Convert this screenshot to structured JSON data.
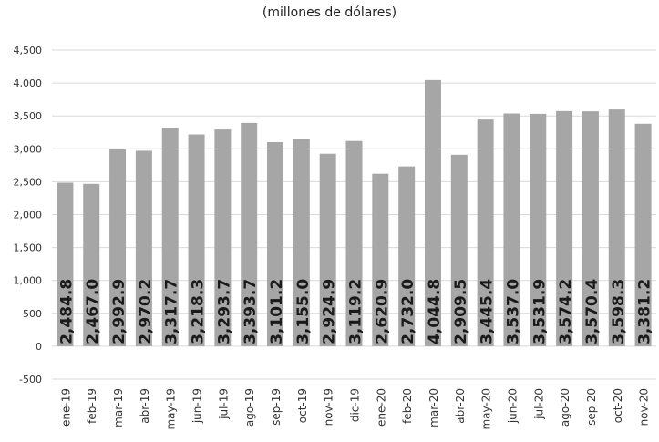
{
  "chart_data": {
    "type": "bar",
    "title": "(millones de dólares)",
    "xlabel": "",
    "ylabel": "",
    "categories": [
      "ene-19",
      "feb-19",
      "mar-19",
      "abr-19",
      "may-19",
      "jun-19",
      "jul-19",
      "ago-19",
      "sep-19",
      "oct-19",
      "nov-19",
      "dic-19",
      "ene-20",
      "feb-20",
      "mar-20",
      "abr-20",
      "may-20",
      "jun-20",
      "jul-20",
      "ago-20",
      "sep-20",
      "oct-20",
      "nov-20"
    ],
    "values": [
      2484.8,
      2467.0,
      2992.9,
      2970.2,
      3317.7,
      3218.3,
      3293.7,
      3393.7,
      3101.2,
      3155.0,
      2924.9,
      3119.2,
      2620.9,
      2732.0,
      4044.8,
      2909.5,
      3445.4,
      3537.0,
      3531.9,
      3574.2,
      3570.4,
      3598.3,
      3381.2
    ],
    "data_labels": [
      "2,484.8",
      "2,467.0",
      "2,992.9",
      "2,970.2",
      "3,317.7",
      "3,218.3",
      "3,293.7",
      "3,393.7",
      "3,101.2",
      "3,155.0",
      "2,924.9",
      "3,119.2",
      "2,620.9",
      "2,732.0",
      "4,044.8",
      "2,909.5",
      "3,445.4",
      "3,537.0",
      "3,531.9",
      "3,574.2",
      "3,570.4",
      "3,598.3",
      "3,381.2"
    ],
    "ylim": [
      -500,
      4500
    ],
    "yticks": [
      -500,
      0,
      500,
      1000,
      1500,
      2000,
      2500,
      3000,
      3500,
      4000,
      4500
    ],
    "ytick_labels": [
      "-500",
      "0",
      "500",
      "1,000",
      "1,500",
      "2,000",
      "2,500",
      "3,000",
      "3,500",
      "4,000",
      "4,500"
    ],
    "grid": true,
    "colors": {
      "bar": "#a6a6a6",
      "grid": "#d9d9d9",
      "label": "#1a1a1a",
      "axis_text": "#333333"
    }
  }
}
